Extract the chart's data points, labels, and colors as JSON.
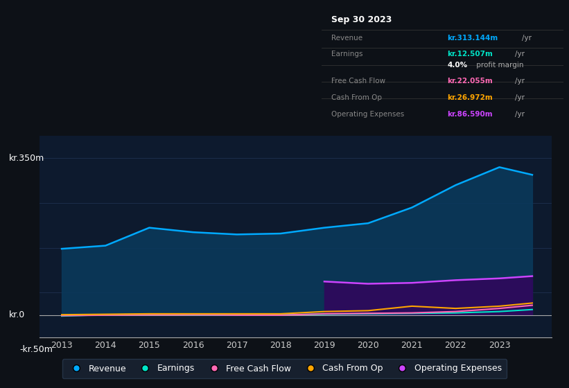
{
  "background_color": "#0d1117",
  "plot_bg_color": "#0d1a2e",
  "grid_color": "#1e3050",
  "title_box": {
    "date": "Sep 30 2023",
    "rows": [
      {
        "label": "Revenue",
        "value": "kr.313.144m",
        "unit": "/yr",
        "value_color": "#00aaff"
      },
      {
        "label": "Earnings",
        "value": "kr.12.507m",
        "unit": "/yr",
        "value_color": "#00e5c8"
      },
      {
        "label": "",
        "value": "4.0%",
        "unit": " profit margin",
        "value_color": "#ffffff"
      },
      {
        "label": "Free Cash Flow",
        "value": "kr.22.055m",
        "unit": "/yr",
        "value_color": "#ff69b4"
      },
      {
        "label": "Cash From Op",
        "value": "kr.26.972m",
        "unit": "/yr",
        "value_color": "#ffa500"
      },
      {
        "label": "Operating Expenses",
        "value": "kr.86.590m",
        "unit": "/yr",
        "value_color": "#cc44ff"
      }
    ]
  },
  "years": [
    2013,
    2014,
    2015,
    2016,
    2017,
    2018,
    2019,
    2020,
    2021,
    2022,
    2023,
    2023.75
  ],
  "revenue": [
    148,
    155,
    195,
    185,
    180,
    182,
    195,
    205,
    240,
    290,
    330,
    313
  ],
  "earnings": [
    -2,
    1,
    2,
    1,
    0,
    1,
    2,
    3,
    4,
    5,
    8,
    12.5
  ],
  "free_cash": [
    -1,
    0,
    1,
    1,
    0,
    0,
    3,
    4,
    5,
    8,
    15,
    22
  ],
  "cash_op": [
    1,
    2,
    3,
    3,
    3,
    3,
    8,
    10,
    20,
    15,
    20,
    27
  ],
  "op_expenses": [
    75,
    70,
    72,
    78,
    82,
    87
  ],
  "op_expenses_years": [
    2019,
    2020,
    2021,
    2022,
    2023,
    2023.75
  ],
  "ylim": [
    -50,
    400
  ],
  "ytick_labels": [
    "-kr.50m",
    "kr.0",
    "kr.350m"
  ],
  "xticks": [
    2013,
    2014,
    2015,
    2016,
    2017,
    2018,
    2019,
    2020,
    2021,
    2022,
    2023
  ],
  "legend_items": [
    {
      "label": "Revenue",
      "color": "#00aaff"
    },
    {
      "label": "Earnings",
      "color": "#00e5c8"
    },
    {
      "label": "Free Cash Flow",
      "color": "#ff69b4"
    },
    {
      "label": "Cash From Op",
      "color": "#ffa500"
    },
    {
      "label": "Operating Expenses",
      "color": "#cc44ff"
    }
  ],
  "revenue_color": "#00aaff",
  "earnings_color": "#00e5c8",
  "free_cash_color": "#ff69b4",
  "cash_op_color": "#ffa500",
  "op_expenses_color": "#cc44ff",
  "revenue_fill": "#0a3a5c",
  "op_fill": "#2d0a5c"
}
